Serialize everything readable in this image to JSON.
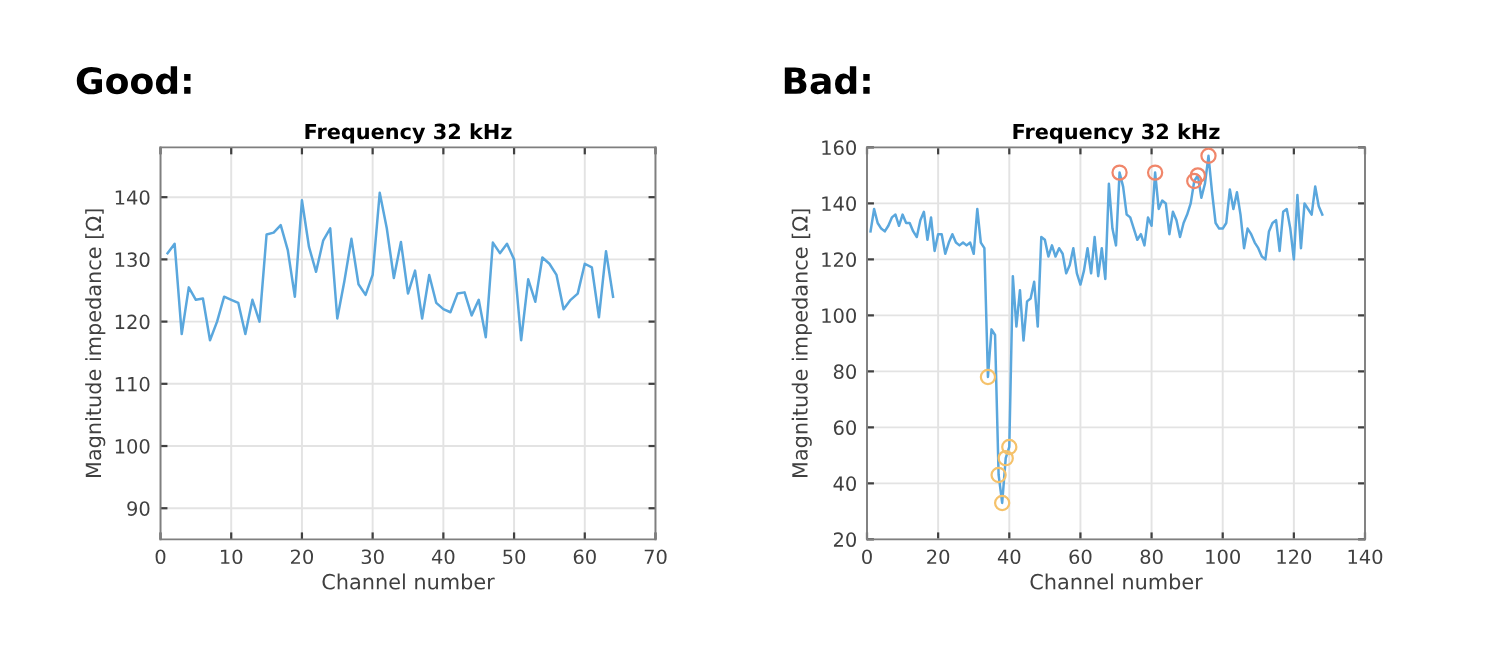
{
  "chart_data": [
    {
      "type": "line",
      "subtitle": "Good:",
      "title": "Frequency 32 kHz",
      "xlabel": "Channel number",
      "ylabel": "Magnitude impedance [Ω]",
      "xlim": [
        0,
        70
      ],
      "xticks": [
        0,
        10,
        20,
        30,
        40,
        50,
        60,
        70
      ],
      "ylim": [
        85,
        148
      ],
      "yticks": [
        90,
        100,
        110,
        120,
        130,
        140
      ],
      "grid": true,
      "legend": false,
      "x": [
        1,
        2,
        3,
        4,
        5,
        6,
        7,
        8,
        9,
        10,
        11,
        12,
        13,
        14,
        15,
        16,
        17,
        18,
        19,
        20,
        21,
        22,
        23,
        24,
        25,
        26,
        27,
        28,
        29,
        30,
        31,
        32,
        33,
        34,
        35,
        36,
        37,
        38,
        39,
        40,
        41,
        42,
        43,
        44,
        45,
        46,
        47,
        48,
        49,
        50,
        51,
        52,
        53,
        54,
        55,
        56,
        57,
        58,
        59,
        60,
        61,
        62,
        63,
        64
      ],
      "series": [
        {
          "color": "#5aa7dd",
          "values": [
            131,
            132.5,
            118,
            125.5,
            123.5,
            123.7,
            117,
            120,
            124,
            123.5,
            123,
            118,
            123.5,
            120,
            134,
            134.3,
            135.5,
            131.5,
            124,
            139.5,
            132,
            128,
            133,
            135,
            120.5,
            126.5,
            133.3,
            126,
            124.3,
            127.5,
            140.7,
            135,
            127,
            132.8,
            124.5,
            128.2,
            120.5,
            127.5,
            123,
            122,
            121.5,
            124.5,
            124.7,
            121,
            123.5,
            117.5,
            132.7,
            131,
            132.5,
            130,
            117,
            126.8,
            123.2,
            130.3,
            129.3,
            127.5,
            122,
            123.5,
            124.5,
            129.3,
            128.7,
            120.7,
            131.3,
            124
          ]
        }
      ]
    },
    {
      "type": "line",
      "subtitle": "Bad:",
      "title": "Frequency 32 kHz",
      "xlabel": "Channel number",
      "ylabel": "Magnitude impedance [Ω]",
      "xlim": [
        0,
        140
      ],
      "xticks": [
        0,
        20,
        40,
        60,
        80,
        100,
        120,
        140
      ],
      "ylim": [
        20,
        160
      ],
      "yticks": [
        20,
        40,
        60,
        80,
        100,
        120,
        140,
        160
      ],
      "grid": true,
      "legend": false,
      "x": [
        1,
        2,
        3,
        4,
        5,
        6,
        7,
        8,
        9,
        10,
        11,
        12,
        13,
        14,
        15,
        16,
        17,
        18,
        19,
        20,
        21,
        22,
        23,
        24,
        25,
        26,
        27,
        28,
        29,
        30,
        31,
        32,
        33,
        34,
        35,
        36,
        37,
        38,
        39,
        40,
        41,
        42,
        43,
        44,
        45,
        46,
        47,
        48,
        49,
        50,
        51,
        52,
        53,
        54,
        55,
        56,
        57,
        58,
        59,
        60,
        61,
        62,
        63,
        64,
        65,
        66,
        67,
        68,
        69,
        70,
        71,
        72,
        73,
        74,
        75,
        76,
        77,
        78,
        79,
        80,
        81,
        82,
        83,
        84,
        85,
        86,
        87,
        88,
        89,
        90,
        91,
        92,
        93,
        94,
        95,
        96,
        97,
        98,
        99,
        100,
        101,
        102,
        103,
        104,
        105,
        106,
        107,
        108,
        109,
        110,
        111,
        112,
        113,
        114,
        115,
        116,
        117,
        118,
        119,
        120,
        121,
        122,
        123,
        124,
        125,
        126,
        127,
        128
      ],
      "series": [
        {
          "color": "#5aa7dd",
          "values": [
            130,
            138,
            133,
            131,
            130,
            132,
            135,
            136,
            132,
            136,
            133,
            133,
            130,
            128,
            134,
            137,
            127,
            135,
            123,
            129,
            129,
            122,
            126,
            129,
            126,
            125,
            126,
            125,
            126,
            122,
            138,
            126,
            124,
            78,
            95,
            93,
            43,
            33,
            49,
            53,
            114,
            96,
            109,
            91,
            105,
            106,
            112,
            96,
            128,
            127,
            121,
            125,
            121,
            124,
            122,
            115,
            118,
            124,
            115,
            111,
            116,
            124,
            115,
            128,
            114,
            124,
            113,
            147,
            131,
            125,
            151,
            146,
            136,
            135,
            131,
            127,
            129,
            125,
            135,
            132,
            151,
            138,
            141,
            140,
            129,
            137,
            134,
            128,
            133,
            136,
            140,
            148,
            150,
            142,
            147,
            157,
            144,
            133,
            131,
            131,
            133,
            145,
            138,
            144,
            136,
            124,
            131,
            129,
            126,
            124,
            121,
            120,
            130,
            133,
            134,
            123,
            137,
            138,
            131,
            120,
            143,
            124,
            140,
            138,
            136,
            146,
            139,
            136
          ]
        },
        {
          "type": "scatter",
          "marker": "circle",
          "color": "#f0866a",
          "x": [
            71,
            81,
            92,
            93,
            96
          ],
          "values": [
            151,
            151,
            148,
            150,
            157
          ]
        },
        {
          "type": "scatter",
          "marker": "circle",
          "color": "#f5c26b",
          "x": [
            34,
            37,
            38,
            39,
            40
          ],
          "values": [
            78,
            43,
            33,
            49,
            53
          ]
        }
      ]
    }
  ]
}
